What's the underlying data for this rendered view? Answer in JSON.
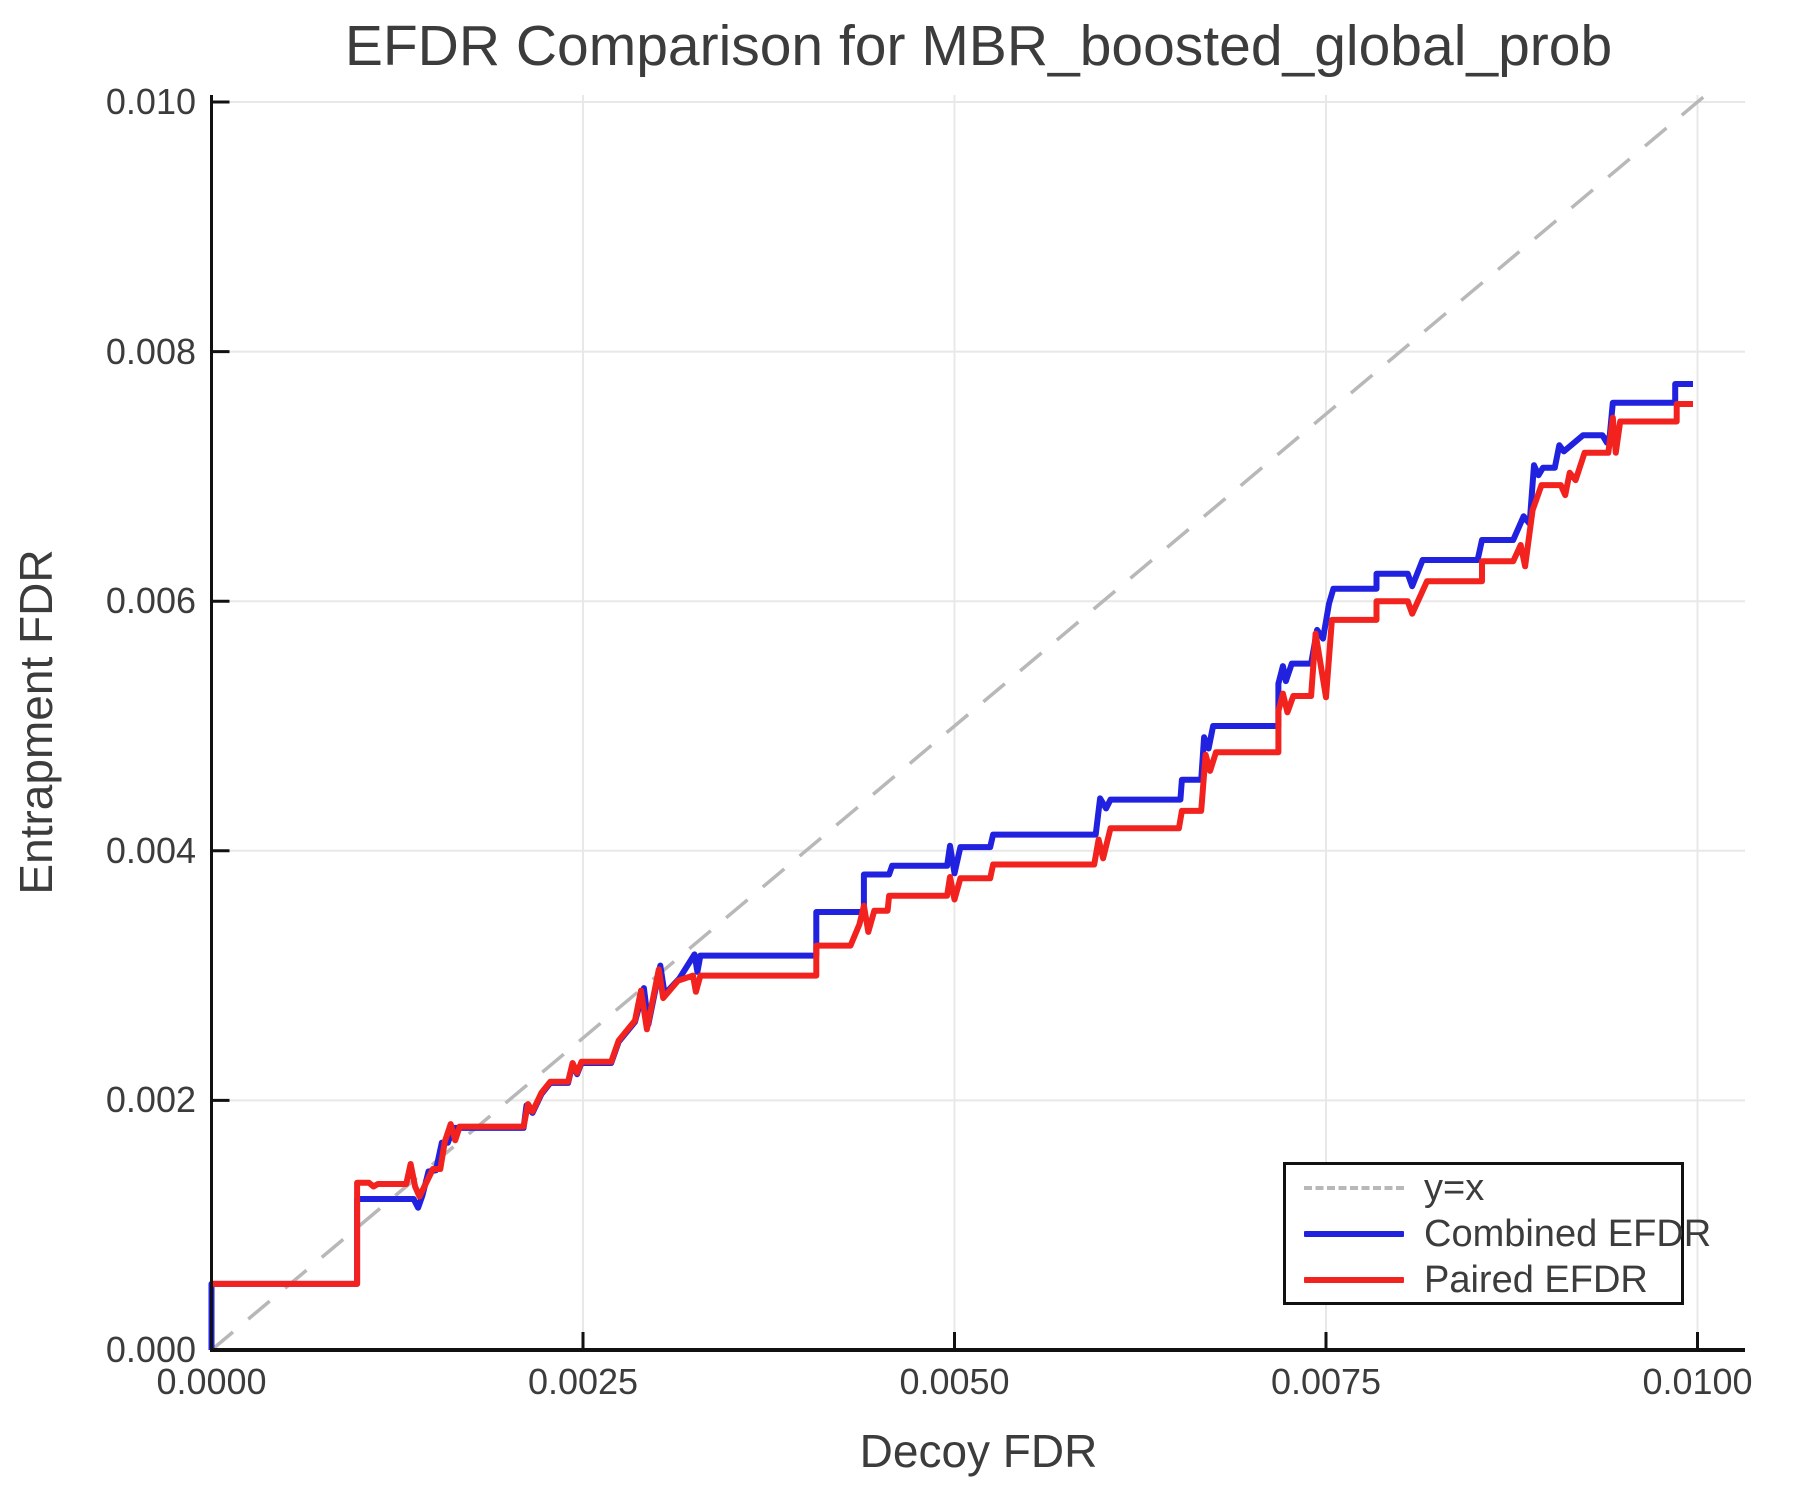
{
  "chart_data": {
    "type": "line",
    "title": "EFDR Comparison for MBR_boosted_global_prob",
    "xlabel": "Decoy FDR",
    "ylabel": "Entrapment FDR",
    "xlim": [
      0,
      0.0103
    ],
    "ylim": [
      0,
      0.0101
    ],
    "grid": true,
    "x_axis": {
      "tick_values": [
        0.0,
        0.0025,
        0.005,
        0.0075,
        0.01
      ],
      "tick_labels": [
        "0.0000",
        "0.0025",
        "0.0050",
        "0.0075",
        "0.0100"
      ]
    },
    "y_axis": {
      "tick_values": [
        0.0,
        0.002,
        0.004,
        0.006,
        0.008,
        0.01
      ],
      "tick_labels": [
        "0.000",
        "0.002",
        "0.004",
        "0.006",
        "0.008",
        "0.010"
      ]
    },
    "reference_line": {
      "label": "y=x",
      "color": "#b8b8b8",
      "style": "dashed",
      "points": [
        [
          0,
          0
        ],
        [
          0.01005,
          0.01005
        ]
      ]
    },
    "series": [
      {
        "name": "Combined EFDR",
        "color": "#2121e0",
        "points": [
          [
            0,
            0
          ],
          [
            0,
            0.00053
          ],
          [
            0.00098,
            0.00053
          ],
          [
            0.00098,
            0.00121
          ],
          [
            0.00136,
            0.00121
          ],
          [
            0.00139,
            0.00114
          ],
          [
            0.00142,
            0.00124
          ],
          [
            0.00146,
            0.00143
          ],
          [
            0.00151,
            0.00144
          ],
          [
            0.00155,
            0.00166
          ],
          [
            0.00159,
            0.00166
          ],
          [
            0.00163,
            0.00178
          ],
          [
            0.0021,
            0.00178
          ],
          [
            0.00212,
            0.00196
          ],
          [
            0.00216,
            0.0019
          ],
          [
            0.00222,
            0.00205
          ],
          [
            0.00228,
            0.00214
          ],
          [
            0.0024,
            0.00214
          ],
          [
            0.00243,
            0.00229
          ],
          [
            0.00246,
            0.00221
          ],
          [
            0.00249,
            0.0023
          ],
          [
            0.00269,
            0.0023
          ],
          [
            0.00274,
            0.00247
          ],
          [
            0.00285,
            0.00263
          ],
          [
            0.00291,
            0.0029
          ],
          [
            0.00294,
            0.00261
          ],
          [
            0.00302,
            0.00308
          ],
          [
            0.00305,
            0.00285
          ],
          [
            0.00315,
            0.00298
          ],
          [
            0.00325,
            0.00317
          ],
          [
            0.00327,
            0.00303
          ],
          [
            0.00329,
            0.00316
          ],
          [
            0.00407,
            0.00316
          ],
          [
            0.00407,
            0.00351
          ],
          [
            0.00439,
            0.00351
          ],
          [
            0.00439,
            0.00381
          ],
          [
            0.00456,
            0.00381
          ],
          [
            0.00458,
            0.00388
          ],
          [
            0.00495,
            0.00388
          ],
          [
            0.00497,
            0.00404
          ],
          [
            0.005,
            0.00382
          ],
          [
            0.00504,
            0.00403
          ],
          [
            0.00524,
            0.00403
          ],
          [
            0.00526,
            0.00413
          ],
          [
            0.00595,
            0.00413
          ],
          [
            0.00598,
            0.00442
          ],
          [
            0.00602,
            0.00434
          ],
          [
            0.00605,
            0.00441
          ],
          [
            0.00652,
            0.00441
          ],
          [
            0.00653,
            0.00457
          ],
          [
            0.00666,
            0.00457
          ],
          [
            0.00668,
            0.00491
          ],
          [
            0.00671,
            0.00482
          ],
          [
            0.00674,
            0.005
          ],
          [
            0.00718,
            0.005
          ],
          [
            0.00718,
            0.00534
          ],
          [
            0.00721,
            0.00548
          ],
          [
            0.00723,
            0.00536
          ],
          [
            0.00727,
            0.0055
          ],
          [
            0.0074,
            0.0055
          ],
          [
            0.00744,
            0.00577
          ],
          [
            0.00748,
            0.0057
          ],
          [
            0.00752,
            0.00598
          ],
          [
            0.00755,
            0.0061
          ],
          [
            0.00784,
            0.0061
          ],
          [
            0.00784,
            0.00622
          ],
          [
            0.00805,
            0.00622
          ],
          [
            0.00808,
            0.00612
          ],
          [
            0.00815,
            0.00633
          ],
          [
            0.00852,
            0.00633
          ],
          [
            0.00855,
            0.00649
          ],
          [
            0.00876,
            0.00649
          ],
          [
            0.00883,
            0.00668
          ],
          [
            0.00887,
            0.00662
          ],
          [
            0.0089,
            0.00709
          ],
          [
            0.00893,
            0.00701
          ],
          [
            0.00896,
            0.00707
          ],
          [
            0.00904,
            0.00707
          ],
          [
            0.00907,
            0.00725
          ],
          [
            0.0091,
            0.0072
          ],
          [
            0.00923,
            0.00733
          ],
          [
            0.00936,
            0.00733
          ],
          [
            0.00939,
            0.00727
          ],
          [
            0.00941,
            0.00733
          ],
          [
            0.00943,
            0.00759
          ],
          [
            0.00985,
            0.00759
          ],
          [
            0.00985,
            0.00774
          ],
          [
            0.00997,
            0.00774
          ]
        ]
      },
      {
        "name": "Paired EFDR",
        "color": "#f2231e",
        "points": [
          [
            0,
            0.00053
          ],
          [
            0.00098,
            0.00053
          ],
          [
            0.00098,
            0.00134
          ],
          [
            0.00106,
            0.00134
          ],
          [
            0.00109,
            0.00131
          ],
          [
            0.00112,
            0.00133
          ],
          [
            0.00131,
            0.00133
          ],
          [
            0.00134,
            0.00149
          ],
          [
            0.00137,
            0.00131
          ],
          [
            0.0014,
            0.00123
          ],
          [
            0.00149,
            0.00145
          ],
          [
            0.00154,
            0.00145
          ],
          [
            0.00157,
            0.00167
          ],
          [
            0.00161,
            0.00181
          ],
          [
            0.00164,
            0.00168
          ],
          [
            0.00167,
            0.00179
          ],
          [
            0.0021,
            0.00179
          ],
          [
            0.00213,
            0.00197
          ],
          [
            0.00216,
            0.00191
          ],
          [
            0.00222,
            0.00206
          ],
          [
            0.00228,
            0.00215
          ],
          [
            0.0024,
            0.00215
          ],
          [
            0.00243,
            0.0023
          ],
          [
            0.00246,
            0.00222
          ],
          [
            0.00249,
            0.00231
          ],
          [
            0.00269,
            0.00231
          ],
          [
            0.00274,
            0.00248
          ],
          [
            0.00285,
            0.00264
          ],
          [
            0.00289,
            0.00288
          ],
          [
            0.00293,
            0.00257
          ],
          [
            0.00301,
            0.00305
          ],
          [
            0.00304,
            0.00282
          ],
          [
            0.00314,
            0.00296
          ],
          [
            0.00324,
            0.003
          ],
          [
            0.00326,
            0.00287
          ],
          [
            0.00329,
            0.003
          ],
          [
            0.00407,
            0.003
          ],
          [
            0.00407,
            0.00324
          ],
          [
            0.0043,
            0.00324
          ],
          [
            0.00436,
            0.00341
          ],
          [
            0.00439,
            0.00356
          ],
          [
            0.00442,
            0.00335
          ],
          [
            0.00446,
            0.00352
          ],
          [
            0.00455,
            0.00352
          ],
          [
            0.00456,
            0.00364
          ],
          [
            0.00495,
            0.00364
          ],
          [
            0.00497,
            0.00379
          ],
          [
            0.005,
            0.00361
          ],
          [
            0.00504,
            0.00378
          ],
          [
            0.00524,
            0.00378
          ],
          [
            0.00526,
            0.00389
          ],
          [
            0.00594,
            0.00389
          ],
          [
            0.00597,
            0.00409
          ],
          [
            0.006,
            0.00394
          ],
          [
            0.00605,
            0.00418
          ],
          [
            0.00651,
            0.00418
          ],
          [
            0.00653,
            0.00432
          ],
          [
            0.00666,
            0.00432
          ],
          [
            0.00669,
            0.00477
          ],
          [
            0.00672,
            0.00464
          ],
          [
            0.00676,
            0.00479
          ],
          [
            0.00718,
            0.00479
          ],
          [
            0.00718,
            0.00512
          ],
          [
            0.00721,
            0.00526
          ],
          [
            0.00724,
            0.00511
          ],
          [
            0.00728,
            0.00524
          ],
          [
            0.0074,
            0.00524
          ],
          [
            0.00743,
            0.00574
          ],
          [
            0.0075,
            0.00523
          ],
          [
            0.00754,
            0.00585
          ],
          [
            0.00784,
            0.00585
          ],
          [
            0.00784,
            0.006
          ],
          [
            0.00805,
            0.006
          ],
          [
            0.00808,
            0.0059
          ],
          [
            0.00818,
            0.00616
          ],
          [
            0.00855,
            0.00616
          ],
          [
            0.00855,
            0.00632
          ],
          [
            0.00876,
            0.00632
          ],
          [
            0.00881,
            0.00645
          ],
          [
            0.00884,
            0.00628
          ],
          [
            0.00889,
            0.00673
          ],
          [
            0.00895,
            0.00693
          ],
          [
            0.00908,
            0.00693
          ],
          [
            0.00911,
            0.00685
          ],
          [
            0.00914,
            0.00703
          ],
          [
            0.00918,
            0.00697
          ],
          [
            0.00924,
            0.00719
          ],
          [
            0.0094,
            0.00719
          ],
          [
            0.00943,
            0.00747
          ],
          [
            0.00945,
            0.00719
          ],
          [
            0.00948,
            0.00744
          ],
          [
            0.00986,
            0.00744
          ],
          [
            0.00986,
            0.00758
          ],
          [
            0.00997,
            0.00758
          ]
        ]
      }
    ],
    "legend": {
      "position": "bottom-right",
      "items": [
        {
          "label": "y=x"
        },
        {
          "label": "Combined EFDR"
        },
        {
          "label": "Paired EFDR"
        }
      ]
    },
    "colors": {
      "grid": "#e8e8e8",
      "spine": "#111111",
      "text": "#3c3c3c"
    }
  }
}
